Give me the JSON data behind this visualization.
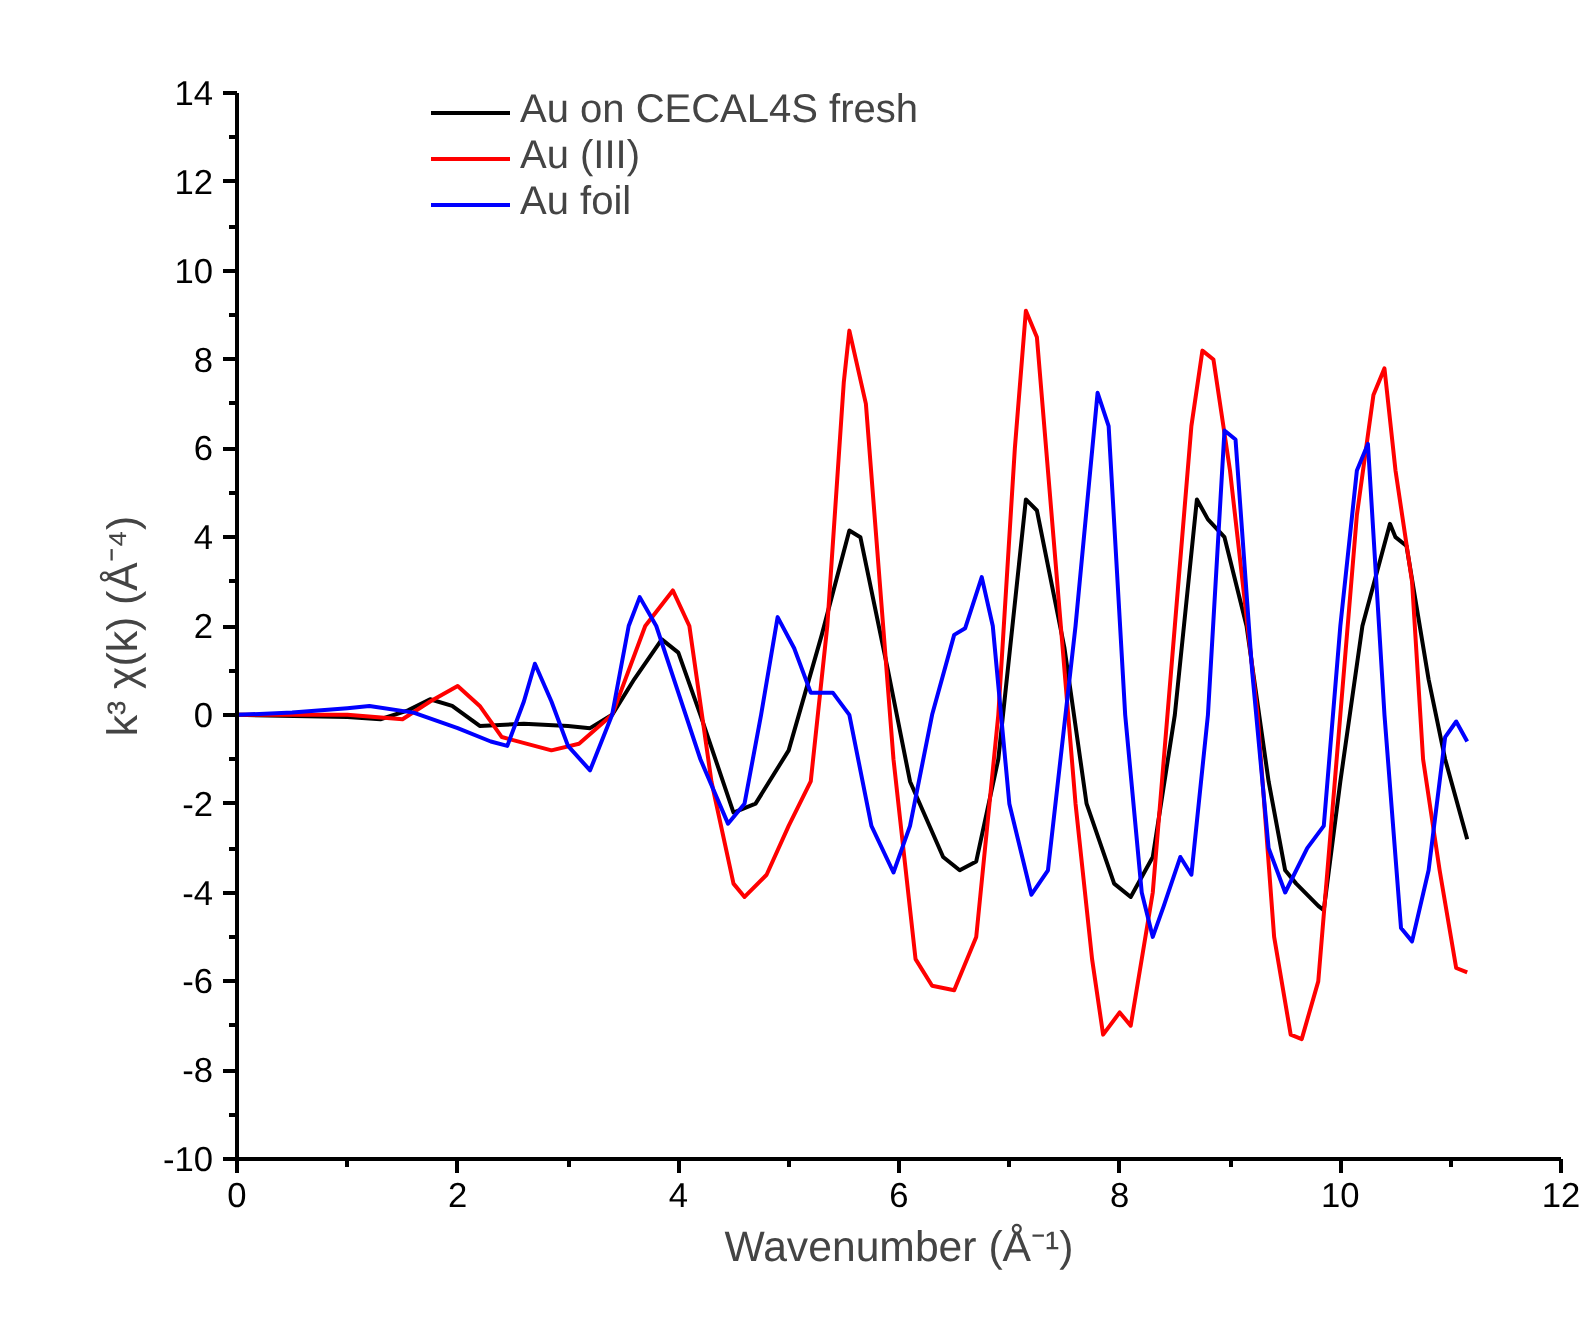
{
  "chart_data": {
    "type": "line",
    "xlabel": "Wavenumber (Å⁻¹)",
    "ylabel": "k³ χ(k) (Å⁻⁴)",
    "xlim": [
      0,
      12
    ],
    "ylim": [
      -10,
      14
    ],
    "xticks": [
      0,
      2,
      4,
      6,
      8,
      10,
      12
    ],
    "yticks": [
      -10,
      -8,
      -6,
      -4,
      -2,
      0,
      2,
      4,
      6,
      8,
      10,
      12,
      14
    ],
    "grid": false,
    "legend": "top",
    "marker": "none",
    "line_style": "solid",
    "series": [
      {
        "name": "Au on CECAL4S fresh",
        "color": "#000000",
        "x": [
          0,
          1,
          1.3,
          1.55,
          1.75,
          1.95,
          2.2,
          2.6,
          3.0,
          3.2,
          3.4,
          3.6,
          3.85,
          4.0,
          4.2,
          4.5,
          4.7,
          5.0,
          5.3,
          5.55,
          5.65,
          5.9,
          6.1,
          6.4,
          6.55,
          6.7,
          6.9,
          7.15,
          7.25,
          7.5,
          7.7,
          7.95,
          8.1,
          8.3,
          8.5,
          8.7,
          8.8,
          8.95,
          9.15,
          9.35,
          9.5,
          9.6,
          9.8,
          9.85,
          10.0,
          10.2,
          10.45,
          10.5,
          10.6,
          10.8,
          10.95,
          11.15
        ],
        "values": [
          0,
          -0.05,
          -0.1,
          0.1,
          0.35,
          0.2,
          -0.25,
          -0.2,
          -0.25,
          -0.3,
          0,
          0.8,
          1.7,
          1.4,
          0,
          -2.2,
          -2.0,
          -0.8,
          1.8,
          4.15,
          4.0,
          1.0,
          -1.5,
          -3.2,
          -3.5,
          -3.3,
          -1.0,
          4.85,
          4.6,
          1.5,
          -2.0,
          -3.8,
          -4.1,
          -3.2,
          0,
          4.85,
          4.4,
          4.0,
          2.0,
          -1.5,
          -3.5,
          -3.8,
          -4.3,
          -4.4,
          -1.5,
          2.0,
          4.3,
          4.0,
          3.8,
          0.8,
          -1.0,
          -2.8
        ]
      },
      {
        "name": "Au (III)",
        "color": "#ff0000",
        "x": [
          0,
          1,
          1.5,
          1.75,
          2.0,
          2.2,
          2.4,
          2.85,
          3.1,
          3.4,
          3.7,
          3.95,
          4.1,
          4.3,
          4.5,
          4.6,
          4.8,
          5.0,
          5.2,
          5.35,
          5.5,
          5.55,
          5.7,
          5.95,
          6.15,
          6.3,
          6.5,
          6.7,
          6.9,
          7.05,
          7.15,
          7.25,
          7.4,
          7.6,
          7.75,
          7.85,
          8.0,
          8.1,
          8.3,
          8.5,
          8.65,
          8.75,
          8.85,
          9.0,
          9.25,
          9.4,
          9.55,
          9.65,
          9.8,
          10.0,
          10.15,
          10.3,
          10.4,
          10.5,
          10.65,
          10.75,
          10.9,
          11.05,
          11.15
        ],
        "values": [
          0,
          0,
          -0.1,
          0.3,
          0.65,
          0.2,
          -0.5,
          -0.8,
          -0.65,
          0,
          2.0,
          2.8,
          2.0,
          -1.5,
          -3.8,
          -4.1,
          -3.6,
          -2.5,
          -1.5,
          2.0,
          7.5,
          8.65,
          7.0,
          -1.0,
          -5.5,
          -6.1,
          -6.2,
          -5.0,
          0,
          6.0,
          9.1,
          8.5,
          4.0,
          -2.0,
          -5.5,
          -7.2,
          -6.7,
          -7.0,
          -4.0,
          2.0,
          6.5,
          8.2,
          8.0,
          5.5,
          0,
          -5.0,
          -7.2,
          -7.3,
          -6.0,
          0,
          4.5,
          7.2,
          7.8,
          5.5,
          3.0,
          -1.0,
          -3.5,
          -5.7,
          -5.8
        ]
      },
      {
        "name": "Au foil",
        "color": "#0000ff",
        "x": [
          0,
          0.5,
          1.0,
          1.2,
          1.6,
          2.0,
          2.3,
          2.45,
          2.6,
          2.7,
          2.85,
          3.0,
          3.2,
          3.4,
          3.55,
          3.65,
          3.8,
          4.0,
          4.2,
          4.45,
          4.6,
          4.75,
          4.9,
          5.05,
          5.2,
          5.4,
          5.55,
          5.75,
          5.95,
          6.1,
          6.3,
          6.5,
          6.6,
          6.75,
          6.85,
          7.0,
          7.2,
          7.35,
          7.6,
          7.8,
          7.9,
          8.05,
          8.2,
          8.3,
          8.4,
          8.55,
          8.65,
          8.8,
          8.95,
          9.05,
          9.2,
          9.35,
          9.5,
          9.7,
          9.85,
          10.0,
          10.15,
          10.25,
          10.4,
          10.55,
          10.65,
          10.8,
          10.95,
          11.05,
          11.15
        ],
        "values": [
          0,
          0.05,
          0.15,
          0.2,
          0.05,
          -0.3,
          -0.6,
          -0.7,
          0.3,
          1.15,
          0.3,
          -0.7,
          -1.25,
          0,
          2.0,
          2.65,
          2.0,
          0.5,
          -1.0,
          -2.45,
          -2.0,
          0,
          2.2,
          1.5,
          0.5,
          0.5,
          0,
          -2.5,
          -3.55,
          -2.5,
          0,
          1.8,
          1.95,
          3.1,
          2.0,
          -2.0,
          -4.05,
          -3.5,
          2.0,
          7.25,
          6.5,
          0,
          -4.0,
          -5.0,
          -4.3,
          -3.2,
          -3.6,
          0,
          6.4,
          6.2,
          1.0,
          -3.0,
          -4.0,
          -3.0,
          -2.5,
          2.0,
          5.5,
          6.1,
          0,
          -4.8,
          -5.1,
          -3.5,
          -0.5,
          -0.15,
          -0.6
        ]
      }
    ]
  }
}
